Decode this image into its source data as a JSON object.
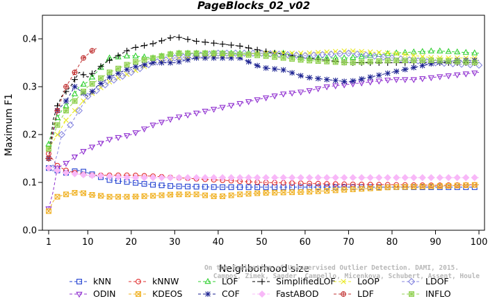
{
  "chart_data": {
    "type": "line",
    "title": "PageBlocks_02_v02",
    "xlabel": "Neighborhood size",
    "ylabel": "Maximum F1",
    "xlim": [
      0,
      100
    ],
    "ylim": [
      0,
      0.45
    ],
    "xticks": [
      1,
      10,
      20,
      30,
      40,
      50,
      60,
      70,
      80,
      90,
      100
    ],
    "yticks": [
      0.0,
      0.1,
      0.2,
      0.3,
      0.4
    ],
    "ytick_labels": [
      "0.0",
      "0.1",
      "0.2",
      "0.3",
      "0.4"
    ],
    "grid": false,
    "legend_position": "bottom",
    "watermark_lines": [
      "Campos, Zimek, Sander, Campello, Micenkova, Schubert, Assent, Houle",
      "On the Evaluation of Unsupervised Outlier Detection. DAMI, 2015."
    ],
    "series": [
      {
        "name": "kNN",
        "color": "#1f3fd0",
        "marker": "square",
        "points": [
          [
            1,
            0.13
          ],
          [
            3,
            0.125
          ],
          [
            5,
            0.12
          ],
          [
            8,
            0.125
          ],
          [
            10,
            0.12
          ],
          [
            15,
            0.105
          ],
          [
            20,
            0.1
          ],
          [
            25,
            0.095
          ],
          [
            30,
            0.092
          ],
          [
            40,
            0.09
          ],
          [
            50,
            0.09
          ],
          [
            60,
            0.09
          ],
          [
            70,
            0.09
          ],
          [
            80,
            0.09
          ],
          [
            90,
            0.09
          ],
          [
            100,
            0.09
          ]
        ]
      },
      {
        "name": "kNNW",
        "color": "#e03030",
        "marker": "circle",
        "points": [
          [
            1,
            0.16
          ],
          [
            3,
            0.135
          ],
          [
            5,
            0.125
          ],
          [
            8,
            0.118
          ],
          [
            10,
            0.115
          ],
          [
            15,
            0.115
          ],
          [
            20,
            0.115
          ],
          [
            25,
            0.113
          ],
          [
            30,
            0.11
          ],
          [
            40,
            0.105
          ],
          [
            50,
            0.1
          ],
          [
            60,
            0.098
          ],
          [
            70,
            0.096
          ],
          [
            80,
            0.095
          ],
          [
            90,
            0.094
          ],
          [
            100,
            0.095
          ]
        ]
      },
      {
        "name": "LOF",
        "color": "#30d030",
        "marker": "triangle-up",
        "points": [
          [
            1,
            0.18
          ],
          [
            2,
            0.22
          ],
          [
            4,
            0.25
          ],
          [
            6,
            0.27
          ],
          [
            8,
            0.3
          ],
          [
            10,
            0.31
          ],
          [
            12,
            0.33
          ],
          [
            15,
            0.36
          ],
          [
            20,
            0.365
          ],
          [
            25,
            0.36
          ],
          [
            30,
            0.37
          ],
          [
            40,
            0.37
          ],
          [
            50,
            0.37
          ],
          [
            55,
            0.37
          ],
          [
            60,
            0.36
          ],
          [
            70,
            0.36
          ],
          [
            80,
            0.37
          ],
          [
            90,
            0.375
          ],
          [
            100,
            0.37
          ]
        ]
      },
      {
        "name": "SimplifiedLOF",
        "color": "#000000",
        "marker": "plus",
        "points": [
          [
            1,
            0.15
          ],
          [
            2,
            0.23
          ],
          [
            3,
            0.26
          ],
          [
            4,
            0.28
          ],
          [
            6,
            0.3
          ],
          [
            8,
            0.33
          ],
          [
            10,
            0.32
          ],
          [
            14,
            0.35
          ],
          [
            16,
            0.36
          ],
          [
            20,
            0.38
          ],
          [
            25,
            0.39
          ],
          [
            30,
            0.405
          ],
          [
            35,
            0.395
          ],
          [
            40,
            0.39
          ],
          [
            45,
            0.385
          ],
          [
            50,
            0.375
          ],
          [
            60,
            0.36
          ],
          [
            70,
            0.35
          ],
          [
            80,
            0.35
          ],
          [
            90,
            0.35
          ],
          [
            100,
            0.35
          ]
        ]
      },
      {
        "name": "LoOP",
        "color": "#e8e820",
        "marker": "x",
        "points": [
          [
            1,
            0.17
          ],
          [
            3,
            0.2
          ],
          [
            5,
            0.23
          ],
          [
            8,
            0.26
          ],
          [
            10,
            0.28
          ],
          [
            15,
            0.31
          ],
          [
            20,
            0.33
          ],
          [
            25,
            0.35
          ],
          [
            30,
            0.36
          ],
          [
            40,
            0.365
          ],
          [
            50,
            0.37
          ],
          [
            60,
            0.37
          ],
          [
            70,
            0.375
          ],
          [
            80,
            0.37
          ],
          [
            90,
            0.36
          ],
          [
            100,
            0.36
          ]
        ]
      },
      {
        "name": "LDOF",
        "color": "#8888e0",
        "marker": "diamond",
        "points": [
          [
            2,
            0.13
          ],
          [
            3,
            0.16
          ],
          [
            4,
            0.2
          ],
          [
            6,
            0.22
          ],
          [
            8,
            0.25
          ],
          [
            10,
            0.28
          ],
          [
            15,
            0.31
          ],
          [
            20,
            0.33
          ],
          [
            25,
            0.35
          ],
          [
            30,
            0.36
          ],
          [
            40,
            0.37
          ],
          [
            50,
            0.37
          ],
          [
            60,
            0.365
          ],
          [
            70,
            0.37
          ],
          [
            80,
            0.36
          ],
          [
            90,
            0.35
          ],
          [
            100,
            0.345
          ]
        ]
      },
      {
        "name": "ODIN",
        "color": "#9030d0",
        "marker": "triangle-down",
        "points": [
          [
            1,
            0.045
          ],
          [
            2,
            0.08
          ],
          [
            3,
            0.13
          ],
          [
            5,
            0.14
          ],
          [
            8,
            0.16
          ],
          [
            10,
            0.17
          ],
          [
            15,
            0.19
          ],
          [
            20,
            0.2
          ],
          [
            25,
            0.22
          ],
          [
            30,
            0.235
          ],
          [
            35,
            0.245
          ],
          [
            40,
            0.255
          ],
          [
            45,
            0.265
          ],
          [
            50,
            0.275
          ],
          [
            55,
            0.285
          ],
          [
            60,
            0.29
          ],
          [
            65,
            0.3
          ],
          [
            70,
            0.305
          ],
          [
            75,
            0.31
          ],
          [
            80,
            0.315
          ],
          [
            85,
            0.315
          ],
          [
            90,
            0.32
          ],
          [
            95,
            0.325
          ],
          [
            100,
            0.33
          ]
        ]
      },
      {
        "name": "KDEOS",
        "color": "#f0b020",
        "marker": "square-x",
        "points": [
          [
            1,
            0.04
          ],
          [
            2,
            0.06
          ],
          [
            3,
            0.07
          ],
          [
            5,
            0.075
          ],
          [
            8,
            0.08
          ],
          [
            10,
            0.075
          ],
          [
            15,
            0.07
          ],
          [
            20,
            0.07
          ],
          [
            25,
            0.072
          ],
          [
            30,
            0.075
          ],
          [
            35,
            0.075
          ],
          [
            40,
            0.07
          ],
          [
            45,
            0.075
          ],
          [
            50,
            0.078
          ],
          [
            60,
            0.08
          ],
          [
            70,
            0.085
          ],
          [
            80,
            0.09
          ],
          [
            90,
            0.092
          ],
          [
            100,
            0.095
          ]
        ]
      },
      {
        "name": "COF",
        "color": "#1a2090",
        "marker": "star",
        "points": [
          [
            1,
            0.15
          ],
          [
            2,
            0.2
          ],
          [
            3,
            0.25
          ],
          [
            5,
            0.27
          ],
          [
            7,
            0.3
          ],
          [
            10,
            0.28
          ],
          [
            12,
            0.3
          ],
          [
            15,
            0.32
          ],
          [
            20,
            0.34
          ],
          [
            25,
            0.35
          ],
          [
            30,
            0.35
          ],
          [
            35,
            0.36
          ],
          [
            40,
            0.36
          ],
          [
            45,
            0.36
          ],
          [
            50,
            0.34
          ],
          [
            55,
            0.335
          ],
          [
            60,
            0.32
          ],
          [
            65,
            0.315
          ],
          [
            70,
            0.31
          ],
          [
            75,
            0.32
          ],
          [
            80,
            0.33
          ],
          [
            85,
            0.34
          ],
          [
            90,
            0.35
          ],
          [
            95,
            0.355
          ],
          [
            100,
            0.355
          ]
        ]
      },
      {
        "name": "FastABOD",
        "color": "#f8b8f8",
        "marker": "diamond-filled",
        "points": [
          [
            1,
            0.13
          ],
          [
            5,
            0.12
          ],
          [
            10,
            0.115
          ],
          [
            20,
            0.11
          ],
          [
            30,
            0.11
          ],
          [
            40,
            0.11
          ],
          [
            50,
            0.11
          ],
          [
            60,
            0.11
          ],
          [
            70,
            0.11
          ],
          [
            80,
            0.11
          ],
          [
            90,
            0.11
          ],
          [
            100,
            0.11
          ]
        ]
      },
      {
        "name": "LDF",
        "color": "#c03030",
        "marker": "circle-plus",
        "points": [
          [
            1,
            0.15
          ],
          [
            2,
            0.21
          ],
          [
            3,
            0.25
          ],
          [
            5,
            0.3
          ],
          [
            7,
            0.33
          ],
          [
            9,
            0.36
          ],
          [
            11,
            0.375
          ],
          [
            12,
            0.38
          ]
        ]
      },
      {
        "name": "INFLO",
        "color": "#90d050",
        "marker": "square-star",
        "points": [
          [
            1,
            0.17
          ],
          [
            3,
            0.22
          ],
          [
            5,
            0.25
          ],
          [
            8,
            0.28
          ],
          [
            10,
            0.3
          ],
          [
            15,
            0.33
          ],
          [
            20,
            0.35
          ],
          [
            25,
            0.36
          ],
          [
            30,
            0.37
          ],
          [
            40,
            0.37
          ],
          [
            50,
            0.365
          ],
          [
            60,
            0.355
          ],
          [
            70,
            0.35
          ],
          [
            80,
            0.355
          ],
          [
            90,
            0.355
          ],
          [
            100,
            0.35
          ]
        ]
      }
    ]
  }
}
